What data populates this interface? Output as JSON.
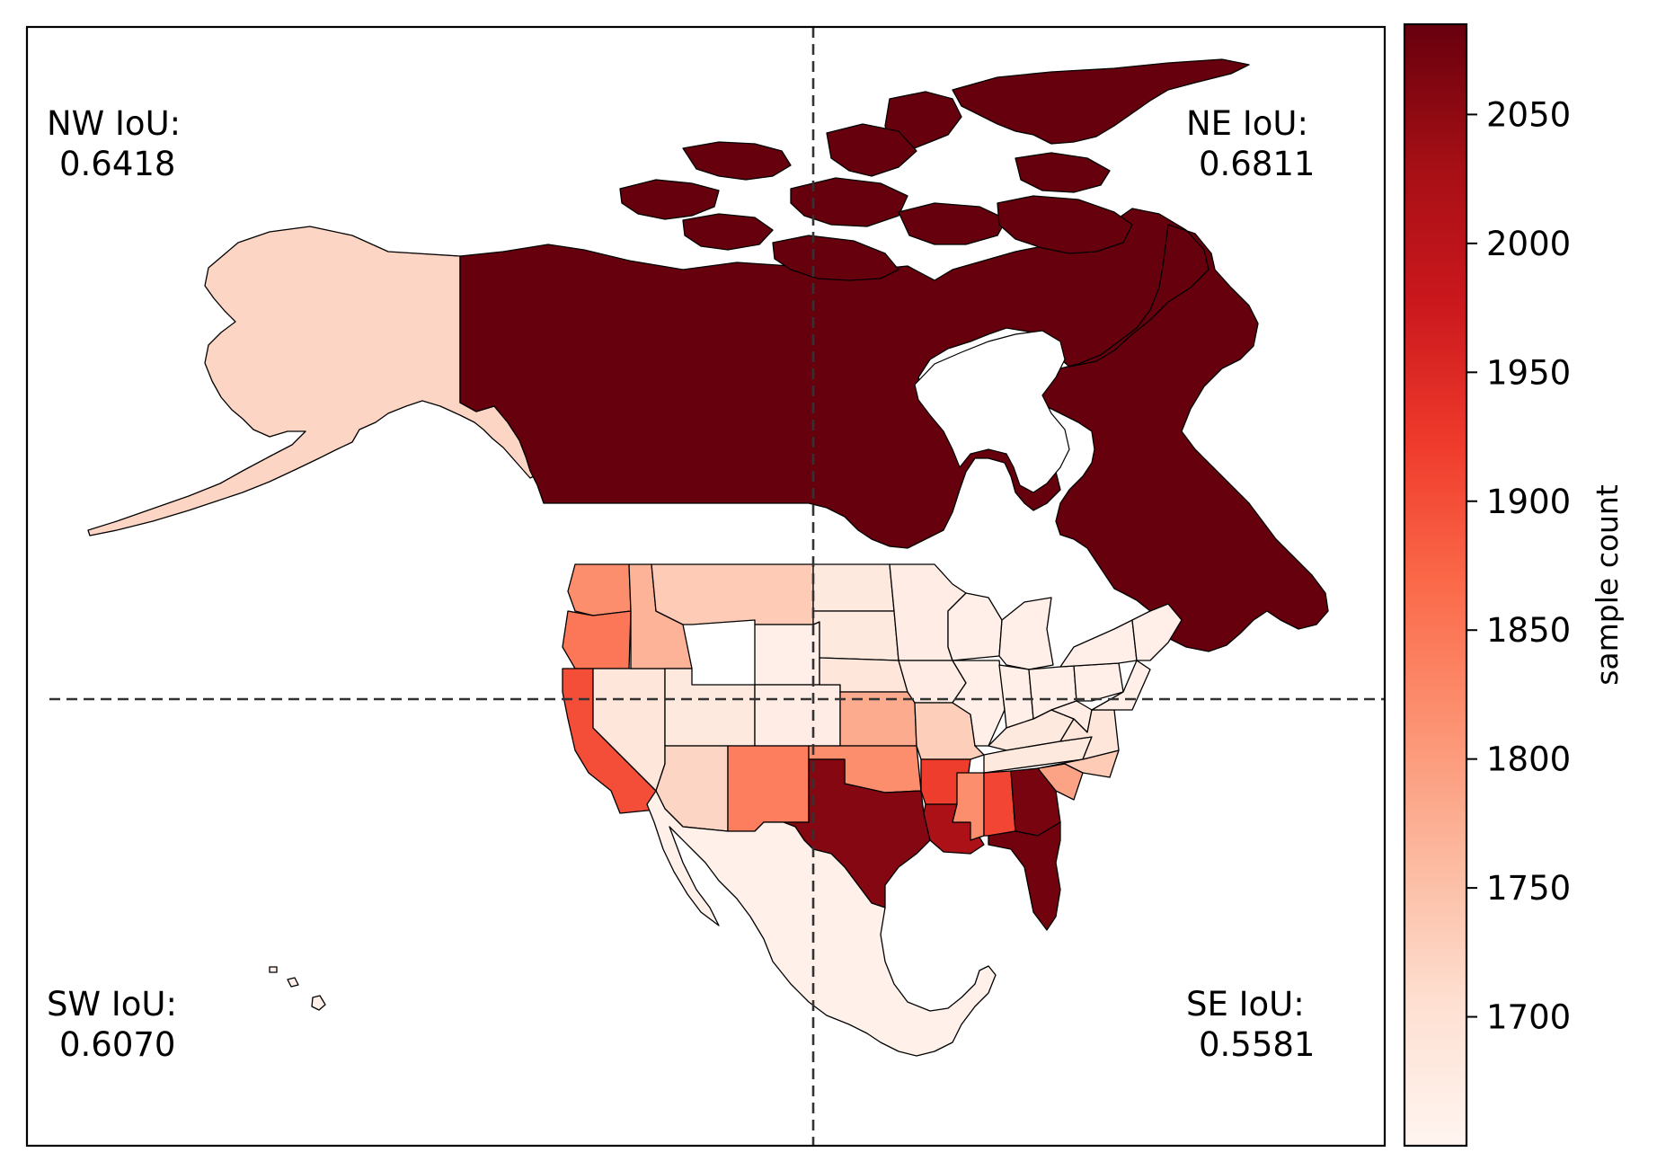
{
  "quadrants": {
    "nw": {
      "label": "NW IoU:",
      "value": "0.6418"
    },
    "ne": {
      "label": "NE IoU:",
      "value": "0.6811"
    },
    "sw": {
      "label": "SW IoU:",
      "value": "0.6070"
    },
    "se": {
      "label": "SE IoU:",
      "value": "0.5581"
    }
  },
  "colorbar": {
    "label": "sample count",
    "ticks": [
      1700,
      1750,
      1800,
      1850,
      1900,
      1950,
      2000,
      2050
    ],
    "range": [
      1650,
      2085
    ],
    "colormap": "Reds",
    "colors": [
      "#fff5f0",
      "#fee0d2",
      "#fcbba1",
      "#fc9272",
      "#fb6a4a",
      "#ef3b2c",
      "#cb181d",
      "#a50f15",
      "#67000d"
    ]
  },
  "style": {
    "divider_color": "#333333",
    "divider": "dashed"
  },
  "regions": [
    {
      "name": "Canada",
      "value": 2085
    },
    {
      "name": "Alaska",
      "value": 1720
    },
    {
      "name": "Mexico",
      "value": 1660
    },
    {
      "name": "Washington",
      "value": 1820
    },
    {
      "name": "Oregon",
      "value": 1850
    },
    {
      "name": "California",
      "value": 1900
    },
    {
      "name": "Nevada",
      "value": 1690
    },
    {
      "name": "Idaho",
      "value": 1770
    },
    {
      "name": "Montana",
      "value": 1735
    },
    {
      "name": "Wyoming",
      "value": 1665
    },
    {
      "name": "Utah",
      "value": 1680
    },
    {
      "name": "Colorado",
      "value": 1670
    },
    {
      "name": "Arizona",
      "value": 1720
    },
    {
      "name": "New Mexico",
      "value": 1840
    },
    {
      "name": "North Dakota",
      "value": 1680
    },
    {
      "name": "South Dakota",
      "value": 1680
    },
    {
      "name": "Nebraska",
      "value": 1690
    },
    {
      "name": "Kansas",
      "value": 1780
    },
    {
      "name": "Oklahoma",
      "value": 1820
    },
    {
      "name": "Texas",
      "value": 2060
    },
    {
      "name": "Minnesota",
      "value": 1670
    },
    {
      "name": "Iowa",
      "value": 1670
    },
    {
      "name": "Missouri",
      "value": 1730
    },
    {
      "name": "Arkansas",
      "value": 1920
    },
    {
      "name": "Louisiana",
      "value": 2020
    },
    {
      "name": "Wisconsin",
      "value": 1665
    },
    {
      "name": "Illinois",
      "value": 1665
    },
    {
      "name": "Mississippi",
      "value": 1820
    },
    {
      "name": "Michigan",
      "value": 1665
    },
    {
      "name": "Indiana",
      "value": 1665
    },
    {
      "name": "Kentucky",
      "value": 1680
    },
    {
      "name": "Tennessee",
      "value": 1680
    },
    {
      "name": "Alabama",
      "value": 1910
    },
    {
      "name": "Ohio",
      "value": 1665
    },
    {
      "name": "Georgia",
      "value": 2070
    },
    {
      "name": "Florida",
      "value": 2075
    },
    {
      "name": "South Carolina",
      "value": 1790
    },
    {
      "name": "North Carolina",
      "value": 1735
    },
    {
      "name": "Virginia",
      "value": 1690
    },
    {
      "name": "West Virginia",
      "value": 1670
    },
    {
      "name": "Pennsylvania",
      "value": 1665
    },
    {
      "name": "New York",
      "value": 1665
    },
    {
      "name": "New England",
      "value": 1665
    },
    {
      "name": "Mid-Atlantic",
      "value": 1665
    },
    {
      "name": "Hawaii",
      "value": 1665
    }
  ]
}
